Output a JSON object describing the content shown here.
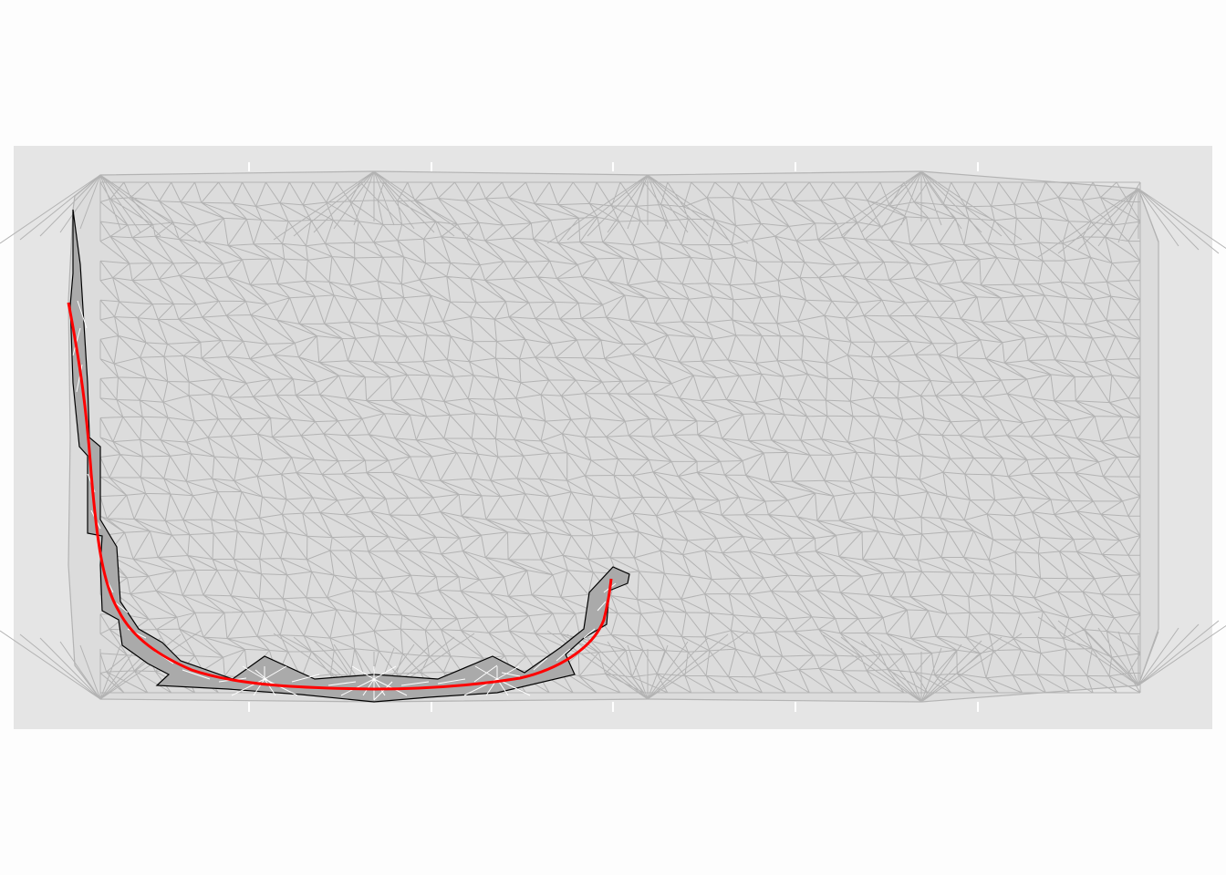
{
  "figure": {
    "background_color": "#fdfdfd",
    "panel_color": "#e5e5e5",
    "grid_line_color": "#ffffff"
  },
  "mesh": {
    "fill_color": "#dcdcdc",
    "edge_color": "#b3b3b3"
  },
  "selected_cells": {
    "fill_color": "#aaaaaa",
    "border_color": "#000000",
    "interior_edge_color": "#ffffff"
  },
  "path_curve": {
    "color": "#ff0000"
  }
}
